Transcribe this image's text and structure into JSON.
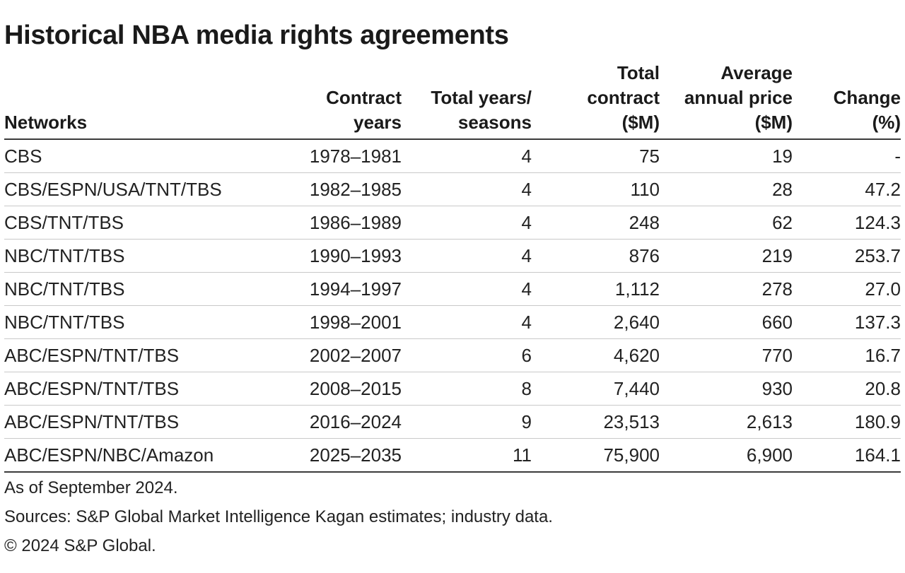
{
  "title": "Historical NBA media rights agreements",
  "table": {
    "headers": [
      [
        "Networks"
      ],
      [
        "Contract",
        "years"
      ],
      [
        "Total years/",
        "seasons"
      ],
      [
        "Total",
        "contract",
        "($M)"
      ],
      [
        "Average",
        "annual price",
        "($M)"
      ],
      [
        "Change",
        "(%)"
      ]
    ],
    "rows": [
      [
        "CBS",
        "1978–1981",
        "4",
        "75",
        "19",
        "-"
      ],
      [
        "CBS/ESPN/USA/TNT/TBS",
        "1982–1985",
        "4",
        "110",
        "28",
        "47.2"
      ],
      [
        "CBS/TNT/TBS",
        "1986–1989",
        "4",
        "248",
        "62",
        "124.3"
      ],
      [
        "NBC/TNT/TBS",
        "1990–1993",
        "4",
        "876",
        "219",
        "253.7"
      ],
      [
        "NBC/TNT/TBS",
        "1994–1997",
        "4",
        "1,112",
        "278",
        "27.0"
      ],
      [
        "NBC/TNT/TBS",
        "1998–2001",
        "4",
        "2,640",
        "660",
        "137.3"
      ],
      [
        "ABC/ESPN/TNT/TBS",
        "2002–2007",
        "6",
        "4,620",
        "770",
        "16.7"
      ],
      [
        "ABC/ESPN/TNT/TBS",
        "2008–2015",
        "8",
        "7,440",
        "930",
        "20.8"
      ],
      [
        "ABC/ESPN/TNT/TBS",
        "2016–2024",
        "9",
        "23,513",
        "2,613",
        "180.9"
      ],
      [
        "ABC/ESPN/NBC/Amazon",
        "2025–2035",
        "11",
        "75,900",
        "6,900",
        "164.1"
      ]
    ]
  },
  "notes": {
    "as_of": "As of September 2024.",
    "sources": "Sources: S&P Global Market Intelligence Kagan estimates; industry data.",
    "copyright": "© 2024 S&P Global."
  }
}
